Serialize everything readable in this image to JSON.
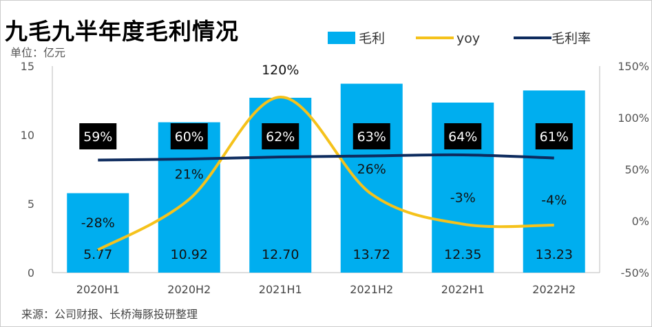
{
  "title": "九毛九半年度毛利情况",
  "unit": "单位：亿元",
  "source": "来源：公司财报、长桥海豚投研整理",
  "colors": {
    "bar": "#00AEEF",
    "yoy": "#F5C21B",
    "margin": "#0D2B5E",
    "label_box": "#000000"
  },
  "chart_data": {
    "type": "bar",
    "title": "九毛九半年度毛利情况",
    "categories": [
      "2020H1",
      "2020H2",
      "2021H1",
      "2021H2",
      "2022H1",
      "2022H2"
    ],
    "series": [
      {
        "name": "毛利",
        "type": "bar",
        "axis": "left",
        "values": [
          5.77,
          10.92,
          12.7,
          13.72,
          12.35,
          13.23
        ],
        "labels": [
          "5.77",
          "10.92",
          "12.70",
          "13.72",
          "12.35",
          "13.23"
        ]
      },
      {
        "name": "yoy",
        "type": "line",
        "axis": "right",
        "values": [
          -28,
          21,
          120,
          26,
          -3,
          -4
        ],
        "labels": [
          "-28%",
          "21%",
          "120%",
          "26%",
          "-3%",
          "-4%"
        ]
      },
      {
        "name": "毛利率",
        "type": "line",
        "axis": "right",
        "values": [
          59,
          60,
          62,
          63,
          64,
          61
        ],
        "labels": [
          "59%",
          "60%",
          "62%",
          "63%",
          "64%",
          "61%"
        ]
      }
    ],
    "left_axis": {
      "ylim": [
        0,
        15
      ],
      "ticks": [
        "0",
        "5",
        "10",
        "15"
      ]
    },
    "right_axis": {
      "ylim": [
        -50,
        150
      ],
      "ticks": [
        "-50%",
        "0%",
        "50%",
        "100%",
        "150%"
      ]
    },
    "legend_position": "top-right",
    "grid": false
  }
}
